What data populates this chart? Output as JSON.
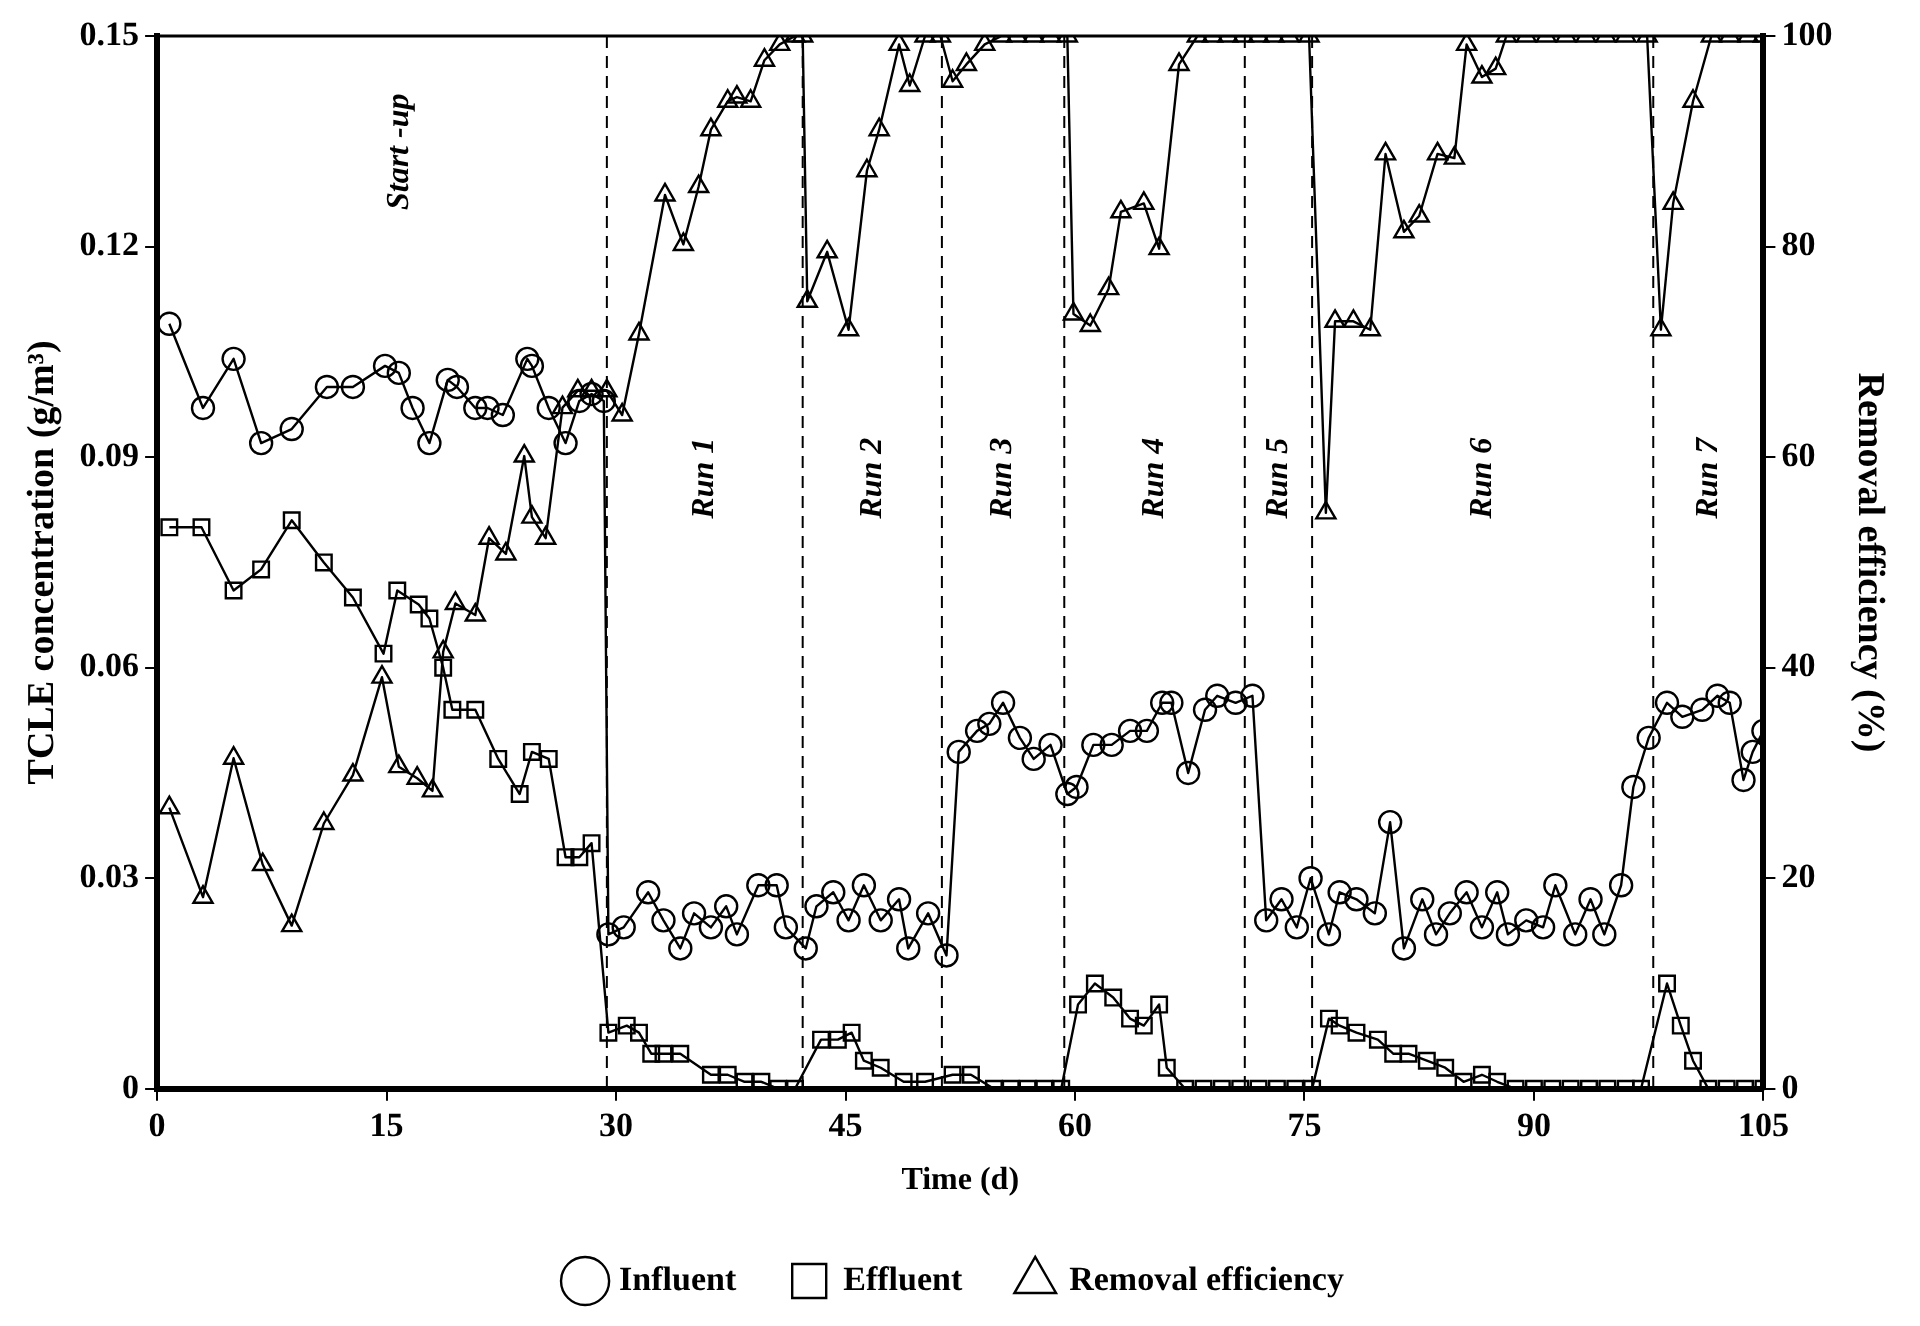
{
  "chart_data": {
    "type": "line",
    "xlabel": "Time (d)",
    "ylabel": "TCLE concentration (g/m³)",
    "y2label": "Removal efficiency (%)",
    "xlim": [
      0,
      105
    ],
    "xticks": [
      0,
      15,
      30,
      45,
      60,
      75,
      90,
      105
    ],
    "ylim": [
      0,
      0.15
    ],
    "yticks": [
      0,
      0.03,
      0.06,
      0.09,
      0.12,
      0.15
    ],
    "y2lim": [
      0,
      100
    ],
    "y2ticks": [
      0,
      20,
      40,
      60,
      80,
      100
    ],
    "grid": false,
    "legend": "bottom",
    "line_style": "solid",
    "series": [
      {
        "name": "Influent",
        "color": "#000000",
        "marker": "circle",
        "x": [
          0.8,
          3.0,
          5.0,
          6.8,
          8.8,
          11.1,
          12.8,
          14.9,
          15.8,
          16.7,
          17.8,
          19.0,
          19.6,
          20.8,
          21.6,
          22.6,
          24.2,
          24.5,
          25.6,
          26.7,
          27.6,
          28.4,
          29.2,
          29.5,
          30.5,
          32.1,
          33.1,
          34.2,
          35.1,
          36.2,
          37.2,
          37.9,
          39.3,
          40.5,
          41.1,
          42.4,
          43.1,
          44.2,
          45.2,
          46.2,
          47.3,
          48.5,
          49.1,
          50.4,
          51.6,
          52.4,
          53.6,
          54.4,
          55.3,
          56.4,
          57.3,
          58.4,
          59.5,
          60.1,
          61.2,
          62.4,
          63.6,
          64.7,
          65.7,
          66.3,
          67.4,
          68.5,
          69.3,
          70.5,
          71.6,
          72.5,
          73.5,
          74.5,
          75.4,
          76.6,
          77.3,
          78.4,
          79.6,
          80.6,
          81.5,
          82.7,
          83.6,
          84.5,
          85.6,
          86.6,
          87.6,
          88.3,
          89.5,
          90.6,
          91.4,
          92.7,
          93.7,
          94.6,
          95.7,
          96.5,
          97.5,
          98.7,
          99.7,
          101.0,
          102.0,
          102.8,
          103.7,
          104.3,
          105
        ],
        "values": [
          0.109,
          0.097,
          0.104,
          0.092,
          0.094,
          0.1,
          0.1,
          0.103,
          0.102,
          0.097,
          0.092,
          0.101,
          0.1,
          0.097,
          0.097,
          0.096,
          0.104,
          0.103,
          0.097,
          0.092,
          0.098,
          0.099,
          0.098,
          0.022,
          0.023,
          0.028,
          0.024,
          0.02,
          0.025,
          0.023,
          0.026,
          0.022,
          0.029,
          0.029,
          0.023,
          0.02,
          0.026,
          0.028,
          0.024,
          0.029,
          0.024,
          0.027,
          0.02,
          0.025,
          0.019,
          0.048,
          0.051,
          0.052,
          0.055,
          0.05,
          0.047,
          0.049,
          0.042,
          0.043,
          0.049,
          0.049,
          0.051,
          0.051,
          0.055,
          0.055,
          0.045,
          0.054,
          0.056,
          0.055,
          0.056,
          0.024,
          0.027,
          0.023,
          0.03,
          0.022,
          0.028,
          0.027,
          0.025,
          0.038,
          0.02,
          0.027,
          0.022,
          0.025,
          0.028,
          0.023,
          0.028,
          0.022,
          0.024,
          0.023,
          0.029,
          0.022,
          0.027,
          0.022,
          0.029,
          0.043,
          0.05,
          0.055,
          0.053,
          0.054,
          0.056,
          0.055,
          0.044,
          0.048,
          0.051
        ]
      },
      {
        "name": "Effluent",
        "color": "#000000",
        "marker": "square",
        "x": [
          0.8,
          2.9,
          5.0,
          6.8,
          8.8,
          10.9,
          12.8,
          14.8,
          15.7,
          17.1,
          17.8,
          18.7,
          19.3,
          20.8,
          22.3,
          23.7,
          24.5,
          25.6,
          26.7,
          27.6,
          28.4,
          29.5,
          30.7,
          31.5,
          32.3,
          33.1,
          34.2,
          36.2,
          37.3,
          38.4,
          39.5,
          40.6,
          41.7,
          43.4,
          44.5,
          45.4,
          46.2,
          47.3,
          48.8,
          50.2,
          52.0,
          53.2,
          54.7,
          55.8,
          56.9,
          58.0,
          59.1,
          60.2,
          61.3,
          62.5,
          63.6,
          64.5,
          65.5,
          66.0,
          67.2,
          68.4,
          69.6,
          70.8,
          72.0,
          73.2,
          74.4,
          75.5,
          76.6,
          77.3,
          78.4,
          79.8,
          80.8,
          81.8,
          83.0,
          84.2,
          85.4,
          86.6,
          87.6,
          88.8,
          90.0,
          91.2,
          92.4,
          93.6,
          94.8,
          96.0,
          97.0,
          98.7,
          99.6,
          100.4,
          101.4,
          102.6,
          103.8,
          105
        ],
        "values": [
          0.08,
          0.08,
          0.071,
          0.074,
          0.081,
          0.075,
          0.07,
          0.062,
          0.071,
          0.069,
          0.067,
          0.06,
          0.054,
          0.054,
          0.047,
          0.042,
          0.048,
          0.047,
          0.033,
          0.033,
          0.035,
          0.008,
          0.009,
          0.008,
          0.005,
          0.005,
          0.005,
          0.002,
          0.002,
          0.001,
          0.001,
          0,
          0,
          0.007,
          0.007,
          0.008,
          0.004,
          0.003,
          0.001,
          0.001,
          0.002,
          0.002,
          0,
          0,
          0,
          0,
          0,
          0.012,
          0.015,
          0.013,
          0.01,
          0.009,
          0.012,
          0.003,
          0,
          0,
          0,
          0,
          0,
          0,
          0,
          0,
          0.01,
          0.009,
          0.008,
          0.007,
          0.005,
          0.005,
          0.004,
          0.003,
          0.001,
          0.002,
          0.001,
          0,
          0,
          0,
          0,
          0,
          0,
          0,
          0,
          0.015,
          0.009,
          0.004,
          0,
          0,
          0,
          0
        ]
      },
      {
        "name": "Removal efficiency",
        "color": "#000000",
        "marker": "triangle",
        "axis": "y2",
        "x": [
          0.8,
          3.0,
          5.0,
          6.9,
          8.8,
          10.9,
          12.8,
          14.7,
          15.8,
          17.0,
          18.0,
          18.7,
          19.5,
          20.8,
          21.7,
          22.8,
          24.0,
          24.5,
          25.4,
          26.5,
          27.5,
          28.4,
          29.4,
          30.4,
          31.5,
          33.2,
          34.4,
          35.4,
          36.2,
          37.3,
          37.9,
          38.8,
          39.7,
          40.7,
          41.7,
          42.2,
          42.5,
          43.8,
          45.2,
          46.4,
          47.2,
          48.5,
          49.2,
          50.2,
          51.2,
          52.0,
          52.9,
          54.1,
          55.2,
          56.2,
          57.3,
          58.4,
          59.5,
          59.9,
          61.0,
          62.2,
          63.0,
          64.5,
          65.5,
          66.8,
          68.0,
          69.0,
          70.0,
          71.0,
          72.0,
          73.0,
          74.0,
          75.3,
          76.4,
          77.0,
          78.2,
          79.3,
          80.3,
          81.5,
          82.5,
          83.7,
          84.8,
          85.6,
          86.6,
          87.5,
          88.2,
          89.5,
          90.8,
          92.1,
          93.4,
          94.7,
          96.0,
          97.4,
          98.3,
          99.1,
          100.4,
          101.6,
          102.8,
          104.0,
          105
        ],
        "values": [
          26.7,
          18.2,
          31.4,
          21.3,
          15.5,
          25.2,
          29.8,
          39.1,
          30.6,
          29.5,
          28.3,
          41.5,
          46.1,
          45.0,
          52.3,
          50.8,
          60.1,
          54.3,
          52.3,
          64.7,
          66.3,
          66.3,
          66.3,
          64.0,
          71.7,
          84.9,
          80.2,
          85.7,
          91.1,
          93.8,
          94.2,
          93.8,
          97.7,
          99.2,
          100,
          100,
          74.8,
          79.5,
          72.1,
          87.2,
          91.1,
          99.2,
          95.3,
          100,
          100,
          95.7,
          97.3,
          99.2,
          100,
          100,
          100,
          100,
          100,
          73.6,
          72.5,
          76.0,
          83.3,
          84.1,
          79.8,
          97.3,
          100,
          100,
          100,
          100,
          100,
          100,
          100,
          100,
          54.7,
          72.9,
          72.9,
          72.1,
          88.8,
          81.4,
          82.9,
          88.8,
          88.4,
          99.2,
          96.1,
          96.9,
          100,
          100,
          100,
          100,
          100,
          100,
          100,
          100,
          72.1,
          84.1,
          93.8,
          100,
          100,
          100,
          100
        ]
      }
    ],
    "ref_lines": [
      {
        "axis": "x",
        "value": 29.4,
        "line_style": "dashed"
      },
      {
        "axis": "x",
        "value": 42.2,
        "line_style": "dashed"
      },
      {
        "axis": "x",
        "value": 51.3,
        "line_style": "dashed"
      },
      {
        "axis": "x",
        "value": 59.3,
        "line_style": "dashed"
      },
      {
        "axis": "x",
        "value": 71.1,
        "line_style": "dashed"
      },
      {
        "axis": "x",
        "value": 75.5,
        "line_style": "dashed"
      },
      {
        "axis": "x",
        "value": 97.8,
        "line_style": "dashed"
      }
    ],
    "annotations": [
      "Start -up",
      "Run 1",
      "Run 2",
      "Run 3",
      "Run 4",
      "Run 5",
      "Run 6",
      "Run 7"
    ]
  }
}
